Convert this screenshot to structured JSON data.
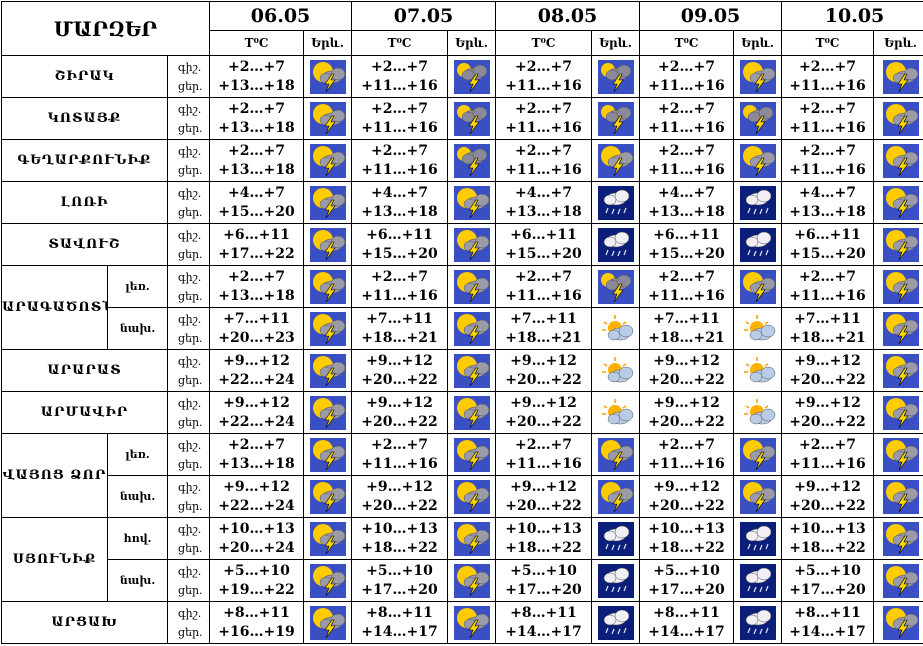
{
  "header": {
    "region_title": "ՄԱՐԶԵՐ",
    "temp_label": "T⁰C",
    "weather_label": "Երև.",
    "dates": [
      "06.05",
      "07.05",
      "08.05",
      "09.05",
      "10.05"
    ]
  },
  "labels": {
    "night": "գիշ.",
    "day": "ցեր."
  },
  "regions": [
    {
      "name": "ՇԻՐԱԿ",
      "subs": [
        {
          "sub": "",
          "night": [
            "+2…+7",
            "+2…+7",
            "+2…+7",
            "+2…+7",
            "+2…+7"
          ],
          "day": [
            "+13…+18",
            "+11…+16",
            "+11…+16",
            "+11…+16",
            "+11…+16"
          ],
          "icons": [
            "sun-storm-icon",
            "storm-icon",
            "storm-icon",
            "sun-storm-icon",
            "sun-storm-icon"
          ]
        }
      ]
    },
    {
      "name": "ԿՈՏԱՅՔ",
      "subs": [
        {
          "sub": "",
          "night": [
            "+2…+7",
            "+2…+7",
            "+2…+7",
            "+2…+7",
            "+2…+7"
          ],
          "day": [
            "+13…+18",
            "+11…+16",
            "+11…+16",
            "+11…+16",
            "+11…+16"
          ],
          "icons": [
            "sun-storm-icon",
            "storm-icon",
            "storm-icon",
            "storm-icon",
            "sun-storm-icon"
          ]
        }
      ]
    },
    {
      "name": "ԳԵՂԱՐՔՈՒՆԻՔ",
      "subs": [
        {
          "sub": "",
          "night": [
            "+2…+7",
            "+2…+7",
            "+2…+7",
            "+2…+7",
            "+2…+7"
          ],
          "day": [
            "+13…+18",
            "+11…+16",
            "+11…+16",
            "+11…+16",
            "+11…+16"
          ],
          "icons": [
            "sun-storm-icon",
            "storm-icon",
            "sun-storm-icon",
            "sun-storm-icon",
            "sun-storm-icon"
          ]
        }
      ]
    },
    {
      "name": "ԼՈՌԻ",
      "subs": [
        {
          "sub": "",
          "night": [
            "+4…+7",
            "+4…+7",
            "+4…+7",
            "+4…+7",
            "+4…+7"
          ],
          "day": [
            "+15…+20",
            "+13…+18",
            "+13…+18",
            "+13…+18",
            "+13…+18"
          ],
          "icons": [
            "sun-storm-icon",
            "sun-storm-icon",
            "rain-cloud-icon",
            "rain-cloud-icon",
            "sun-storm-icon"
          ]
        }
      ]
    },
    {
      "name": "ՏԱՎՈՒՇ",
      "subs": [
        {
          "sub": "",
          "night": [
            "+6…+11",
            "+6…+11",
            "+6…+11",
            "+6…+11",
            "+6…+11"
          ],
          "day": [
            "+17…+22",
            "+15…+20",
            "+15…+20",
            "+15…+20",
            "+15…+20"
          ],
          "icons": [
            "sun-storm-icon",
            "sun-storm-icon",
            "rain-cloud-icon",
            "rain-cloud-icon",
            "sun-storm-icon"
          ]
        }
      ]
    },
    {
      "name": "ԱՐԱԳԱԾՈՏՆ",
      "subs": [
        {
          "sub": "լեռ.",
          "night": [
            "+2…+7",
            "+2…+7",
            "+2…+7",
            "+2…+7",
            "+2…+7"
          ],
          "day": [
            "+13…+18",
            "+11…+16",
            "+11…+16",
            "+11…+16",
            "+11…+16"
          ],
          "icons": [
            "sun-storm-icon",
            "sun-storm-icon",
            "storm-icon",
            "sun-storm-icon",
            "sun-storm-icon"
          ]
        },
        {
          "sub": "նախ.",
          "night": [
            "+7…+11",
            "+7…+11",
            "+7…+11",
            "+7…+11",
            "+7…+11"
          ],
          "day": [
            "+20…+23",
            "+18…+21",
            "+18…+21",
            "+18…+21",
            "+18…+21"
          ],
          "icons": [
            "sun-storm-icon",
            "sun-storm-icon",
            "sun-cloud-icon",
            "sun-cloud-icon",
            "sun-storm-icon"
          ]
        }
      ]
    },
    {
      "name": "ԱՐԱՐԱՏ",
      "subs": [
        {
          "sub": "",
          "night": [
            "+9…+12",
            "+9…+12",
            "+9…+12",
            "+9…+12",
            "+9…+12"
          ],
          "day": [
            "+22…+24",
            "+20…+22",
            "+20…+22",
            "+20…+22",
            "+20…+22"
          ],
          "icons": [
            "sun-storm-icon",
            "sun-storm-icon",
            "sun-cloud-icon",
            "sun-cloud-icon",
            "sun-storm-icon"
          ]
        }
      ]
    },
    {
      "name": "ԱՐՄԱՎԻՐ",
      "subs": [
        {
          "sub": "",
          "night": [
            "+9…+12",
            "+9…+12",
            "+9…+12",
            "+9…+12",
            "+9…+12"
          ],
          "day": [
            "+22…+24",
            "+20…+22",
            "+20…+22",
            "+20…+22",
            "+20…+22"
          ],
          "icons": [
            "sun-storm-icon",
            "sun-storm-icon",
            "sun-cloud-icon",
            "sun-cloud-icon",
            "sun-storm-icon"
          ]
        }
      ]
    },
    {
      "name": "ՎԱՅՈՑ ՁՈՐ",
      "subs": [
        {
          "sub": "լեռ.",
          "night": [
            "+2…+7",
            "+2…+7",
            "+2…+7",
            "+2…+7",
            "+2…+7"
          ],
          "day": [
            "+13…+18",
            "+11…+16",
            "+11…+16",
            "+11…+16",
            "+11…+16"
          ],
          "icons": [
            "sun-storm-icon",
            "sun-storm-icon",
            "sun-storm-icon",
            "sun-storm-icon",
            "sun-storm-icon"
          ]
        },
        {
          "sub": "նախ.",
          "night": [
            "+9…+12",
            "+9…+12",
            "+9…+12",
            "+9…+12",
            "+9…+12"
          ],
          "day": [
            "+22…+24",
            "+20…+22",
            "+20…+22",
            "+20…+22",
            "+20…+22"
          ],
          "icons": [
            "sun-storm-icon",
            "sun-storm-icon",
            "sun-storm-icon",
            "sun-storm-icon",
            "sun-storm-icon"
          ]
        }
      ]
    },
    {
      "name": "ՍՅՈՒՆԻՔ",
      "subs": [
        {
          "sub": "հով.",
          "night": [
            "+10…+13",
            "+10…+13",
            "+10…+13",
            "+10…+13",
            "+10…+13"
          ],
          "day": [
            "+20…+24",
            "+18…+22",
            "+18…+22",
            "+18…+22",
            "+18…+22"
          ],
          "icons": [
            "sun-storm-icon",
            "sun-storm-icon",
            "rain-cloud-icon",
            "rain-cloud-icon",
            "sun-storm-icon"
          ]
        },
        {
          "sub": "նախ.",
          "night": [
            "+5…+10",
            "+5…+10",
            "+5…+10",
            "+5…+10",
            "+5…+10"
          ],
          "day": [
            "+19…+22",
            "+17…+20",
            "+17…+20",
            "+17…+20",
            "+17…+20"
          ],
          "icons": [
            "sun-storm-icon",
            "sun-storm-icon",
            "rain-cloud-icon",
            "rain-cloud-icon",
            "sun-storm-icon"
          ]
        }
      ]
    },
    {
      "name": "ԱՐՑԱԽ",
      "subs": [
        {
          "sub": "",
          "night": [
            "+8…+11",
            "+8…+11",
            "+8…+11",
            "+8…+11",
            "+8…+11"
          ],
          "day": [
            "+16…+19",
            "+14…+17",
            "+14…+17",
            "+14…+17",
            "+14…+17"
          ],
          "icons": [
            "sun-storm-icon",
            "sun-storm-icon",
            "rain-cloud-icon",
            "rain-cloud-icon",
            "sun-storm-icon"
          ]
        }
      ]
    }
  ]
}
